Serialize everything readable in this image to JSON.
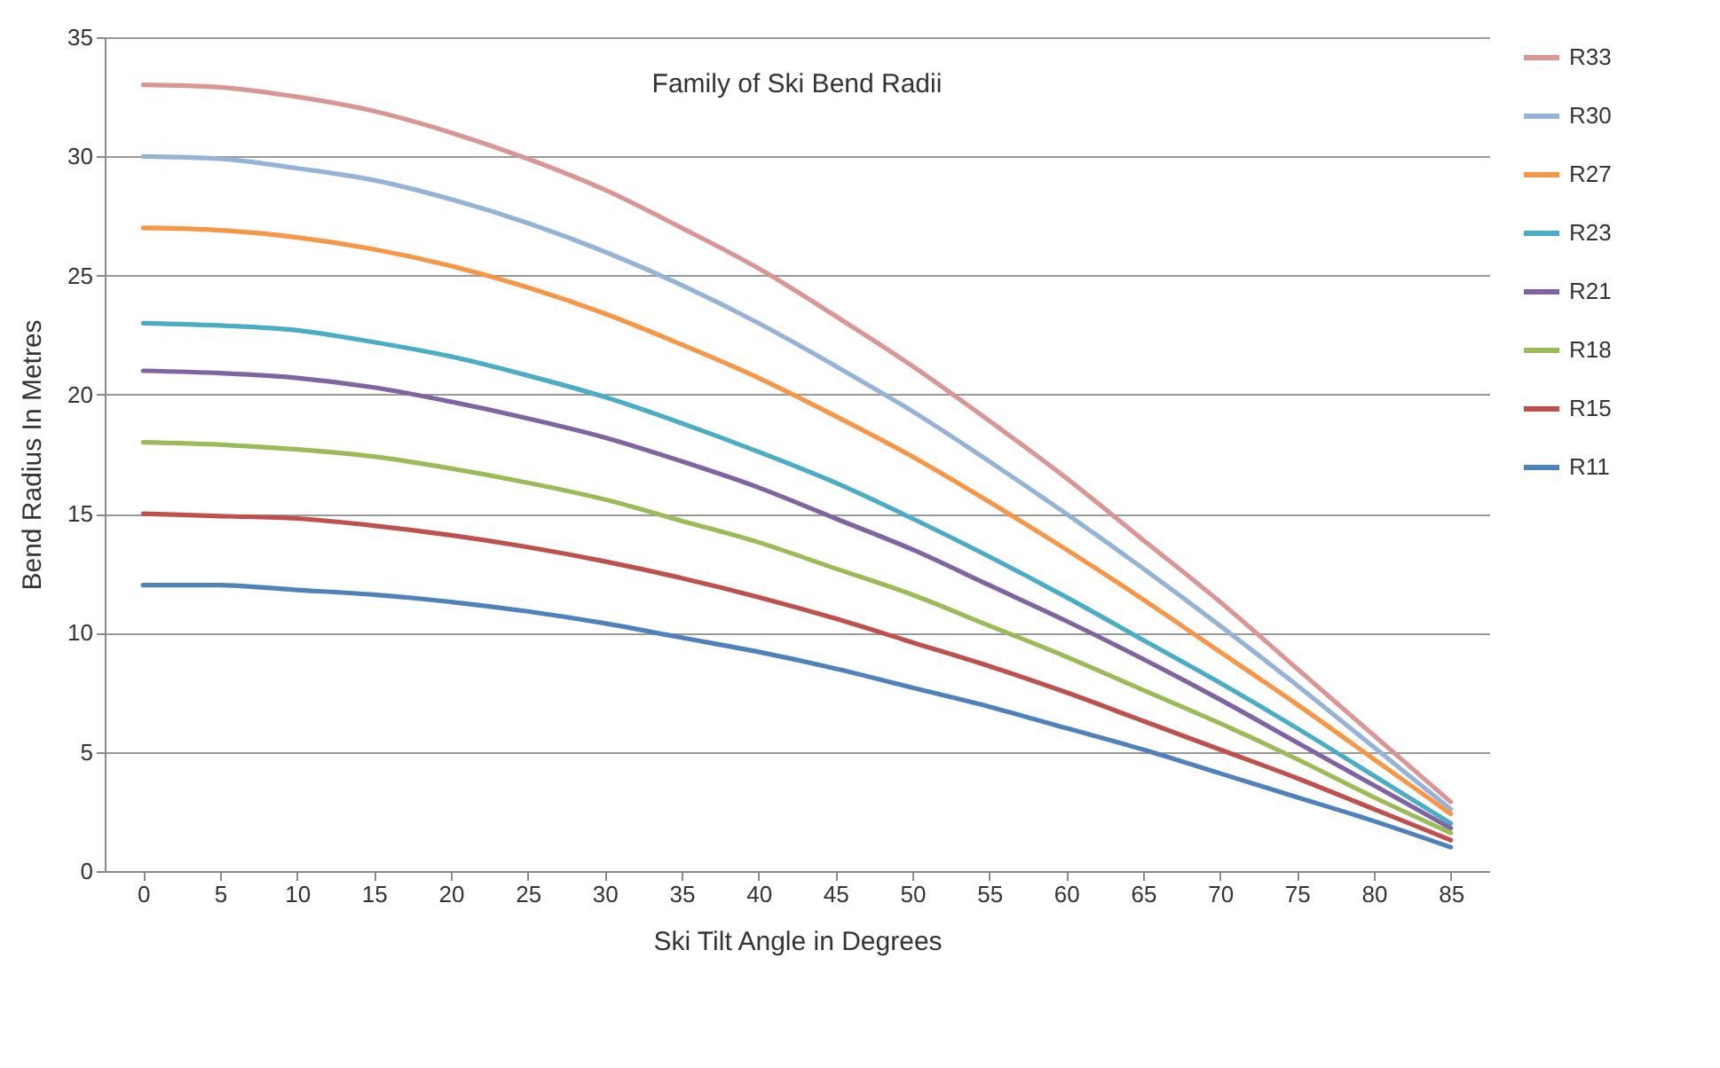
{
  "chart_data": {
    "type": "line",
    "title": "Family of Ski Bend Radii",
    "xlabel": "Ski Tilt Angle in Degrees",
    "ylabel": "Bend Radius In Metres",
    "categories": [
      "0",
      "5",
      "10",
      "15",
      "20",
      "25",
      "30",
      "35",
      "40",
      "45",
      "50",
      "55",
      "60",
      "65",
      "70",
      "75",
      "80",
      "85"
    ],
    "ylim": [
      0,
      35
    ],
    "yticks": [
      0,
      5,
      10,
      15,
      20,
      25,
      30,
      35
    ],
    "grid": "y",
    "legend": "right",
    "marker": "none",
    "line_style": "solid",
    "series": [
      {
        "name": "R33",
        "color": "#d99694",
        "values": [
          33,
          32.9,
          32.5,
          31.9,
          31.0,
          29.9,
          28.6,
          27.0,
          25.3,
          23.3,
          21.2,
          18.9,
          16.5,
          13.9,
          11.3,
          8.5,
          5.7,
          2.9
        ]
      },
      {
        "name": "R30",
        "color": "#95b3d7",
        "values": [
          30,
          29.9,
          29.5,
          29.0,
          28.2,
          27.2,
          26.0,
          24.6,
          23.0,
          21.2,
          19.3,
          17.2,
          15.0,
          12.7,
          10.3,
          7.8,
          5.2,
          2.6
        ]
      },
      {
        "name": "R27",
        "color": "#f79646",
        "values": [
          27,
          26.9,
          26.6,
          26.1,
          25.4,
          24.5,
          23.4,
          22.1,
          20.7,
          19.1,
          17.4,
          15.5,
          13.5,
          11.4,
          9.2,
          7.0,
          4.7,
          2.4
        ]
      },
      {
        "name": "R23",
        "color": "#4bacc6",
        "values": [
          23,
          22.9,
          22.7,
          22.2,
          21.6,
          20.8,
          19.9,
          18.8,
          17.6,
          16.3,
          14.8,
          13.2,
          11.5,
          9.7,
          7.9,
          6.0,
          4.0,
          2.0
        ]
      },
      {
        "name": "R21",
        "color": "#8064a2",
        "values": [
          21,
          20.9,
          20.7,
          20.3,
          19.7,
          19.0,
          18.2,
          17.2,
          16.1,
          14.8,
          13.5,
          12.0,
          10.5,
          8.9,
          7.2,
          5.4,
          3.6,
          1.8
        ]
      },
      {
        "name": "R18",
        "color": "#9bbb59",
        "values": [
          18,
          17.9,
          17.7,
          17.4,
          16.9,
          16.3,
          15.6,
          14.7,
          13.8,
          12.7,
          11.6,
          10.3,
          9.0,
          7.6,
          6.2,
          4.7,
          3.1,
          1.6
        ]
      },
      {
        "name": "R15",
        "color": "#c0504d",
        "values": [
          15,
          14.9,
          14.8,
          14.5,
          14.1,
          13.6,
          13.0,
          12.3,
          11.5,
          10.6,
          9.6,
          8.6,
          7.5,
          6.3,
          5.1,
          3.9,
          2.6,
          1.3
        ]
      },
      {
        "name": "R11",
        "color": "#4f81bd",
        "values": [
          12,
          12.0,
          11.8,
          11.6,
          11.3,
          10.9,
          10.4,
          9.8,
          9.2,
          8.5,
          7.7,
          6.9,
          6.0,
          5.1,
          4.1,
          3.1,
          2.1,
          1.0
        ]
      }
    ]
  }
}
